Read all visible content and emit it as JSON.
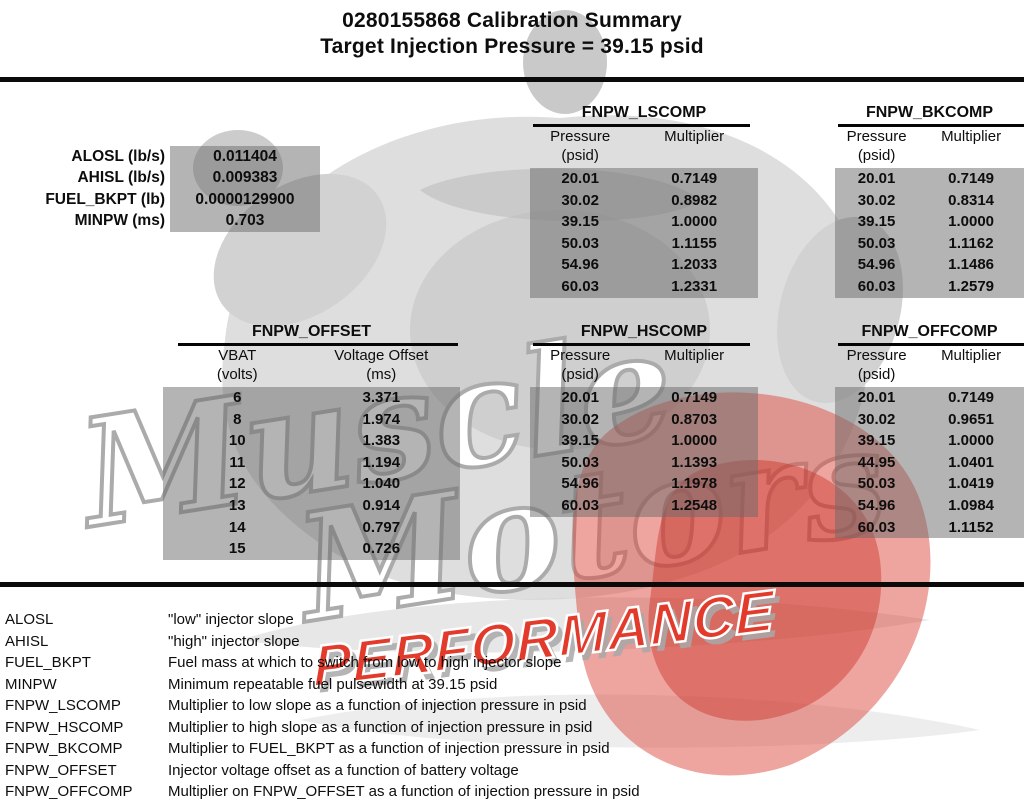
{
  "title": {
    "line1": "0280155868 Calibration Summary",
    "line2": "Target Injection Pressure = 39.15 psid"
  },
  "parameters": [
    {
      "label": "ALOSL (lb/s)",
      "value": "0.011404"
    },
    {
      "label": "AHISL (lb/s)",
      "value": "0.009383"
    },
    {
      "label": "FUEL_BKPT (lb)",
      "value": "0.0000129900"
    },
    {
      "label": "MINPW (ms)",
      "value": "0.703"
    }
  ],
  "tables": {
    "lscomp": {
      "title": "FNPW_LSCOMP",
      "headers": {
        "col1": "Pressure",
        "col2": "Multiplier",
        "unit1": "(psid)",
        "unit2": ""
      },
      "rows": [
        [
          "20.01",
          "0.7149"
        ],
        [
          "30.02",
          "0.8982"
        ],
        [
          "39.15",
          "1.0000"
        ],
        [
          "50.03",
          "1.1155"
        ],
        [
          "54.96",
          "1.2033"
        ],
        [
          "60.03",
          "1.2331"
        ]
      ]
    },
    "bkcomp": {
      "title": "FNPW_BKCOMP",
      "headers": {
        "col1": "Pressure",
        "col2": "Multiplier",
        "unit1": "(psid)",
        "unit2": ""
      },
      "rows": [
        [
          "20.01",
          "0.7149"
        ],
        [
          "30.02",
          "0.8314"
        ],
        [
          "39.15",
          "1.0000"
        ],
        [
          "50.03",
          "1.1162"
        ],
        [
          "54.96",
          "1.1486"
        ],
        [
          "60.03",
          "1.2579"
        ]
      ]
    },
    "offset": {
      "title": "FNPW_OFFSET",
      "headers": {
        "col1": "VBAT",
        "col2": "Voltage Offset",
        "unit1": "(volts)",
        "unit2": "(ms)"
      },
      "rows": [
        [
          "6",
          "3.371"
        ],
        [
          "8",
          "1.974"
        ],
        [
          "10",
          "1.383"
        ],
        [
          "11",
          "1.194"
        ],
        [
          "12",
          "1.040"
        ],
        [
          "13",
          "0.914"
        ],
        [
          "14",
          "0.797"
        ],
        [
          "15",
          "0.726"
        ]
      ]
    },
    "hscomp": {
      "title": "FNPW_HSCOMP",
      "headers": {
        "col1": "Pressure",
        "col2": "Multiplier",
        "unit1": "(psid)",
        "unit2": ""
      },
      "rows": [
        [
          "20.01",
          "0.7149"
        ],
        [
          "30.02",
          "0.8703"
        ],
        [
          "39.15",
          "1.0000"
        ],
        [
          "50.03",
          "1.1393"
        ],
        [
          "54.96",
          "1.1978"
        ],
        [
          "60.03",
          "1.2548"
        ]
      ]
    },
    "offcomp": {
      "title": "FNPW_OFFCOMP",
      "headers": {
        "col1": "Pressure",
        "col2": "Multiplier",
        "unit1": "(psid)",
        "unit2": ""
      },
      "rows": [
        [
          "20.01",
          "0.7149"
        ],
        [
          "30.02",
          "0.9651"
        ],
        [
          "39.15",
          "1.0000"
        ],
        [
          "44.95",
          "1.0401"
        ],
        [
          "50.03",
          "1.0419"
        ],
        [
          "54.96",
          "1.0984"
        ],
        [
          "60.03",
          "1.1152"
        ]
      ]
    }
  },
  "definitions": [
    {
      "term": "ALOSL",
      "description": "\"low\" injector slope"
    },
    {
      "term": "AHISL",
      "description": "\"high\" injector slope"
    },
    {
      "term": "FUEL_BKPT",
      "description": "Fuel mass at which to switch from low to high injector slope"
    },
    {
      "term": "MINPW",
      "description": "Minimum repeatable fuel pulsewidth at 39.15 psid"
    },
    {
      "term": "FNPW_LSCOMP",
      "description": "Multiplier to low slope as a function of injection pressure in psid"
    },
    {
      "term": "FNPW_HSCOMP",
      "description": "Multiplier to high slope as a function of injection pressure in psid"
    },
    {
      "term": "FNPW_BKCOMP",
      "description": "Multiplier to FUEL_BKPT as a function of injection pressure in psid"
    },
    {
      "term": "FNPW_OFFSET",
      "description": "Injector voltage offset as a function of battery voltage"
    },
    {
      "term": "FNPW_OFFCOMP",
      "description": "Multiplier on FNPW_OFFSET as a function of injection pressure in psid"
    }
  ],
  "watermark": {
    "word1": "Muscle",
    "word2": "Motors",
    "word3": "PERFORMANCE"
  },
  "colors": {
    "rule": "#0a0a0a",
    "cell_shade": "#b9b9b9",
    "watermark_gray": "#d8d8d8",
    "watermark_red": "#e23b2c"
  }
}
